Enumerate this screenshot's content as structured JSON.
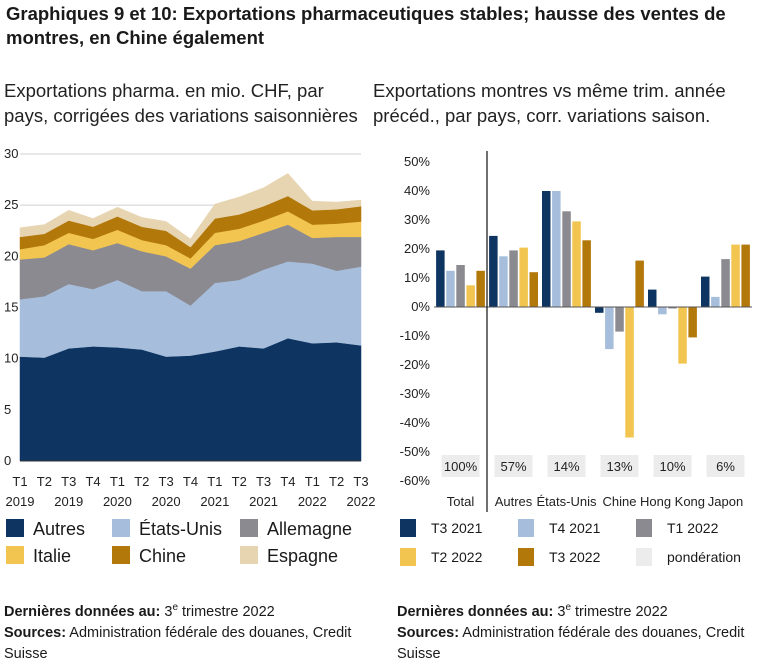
{
  "title": "Graphiques 9 et 10: Exportations pharmaceutiques stables; hausse des ventes de montres, en Chine également",
  "footer": {
    "last_data_label": "Dernières données au:",
    "last_data_num": "3",
    "last_data_sup": "e",
    "last_data_rest": " trimestre 2022",
    "sources_label": "Sources:",
    "sources_text": " Administration fédérale des douanes, Credit Suisse"
  },
  "chart_data": [
    {
      "type": "area",
      "stacked": true,
      "subtitle": "Exportations pharma. en mio. CHF, par pays, corrigées des variations saisonnières",
      "x": [
        "T1 2019",
        "T2 2019",
        "T3 2019",
        "T4 2019",
        "T1 2020",
        "T2 2020",
        "T3 2020",
        "T4 2020",
        "T1 2021",
        "T2 2021",
        "T3 2021",
        "T4 2021",
        "T1 2022",
        "T2 2022",
        "T3 2022"
      ],
      "x_tick_labels": [
        {
          "q": "T1",
          "y": "2019"
        },
        {
          "q": "T2",
          "y": ""
        },
        {
          "q": "T3",
          "y": "2019"
        },
        {
          "q": "T4",
          "y": ""
        },
        {
          "q": "T1",
          "y": "2020"
        },
        {
          "q": "T2",
          "y": ""
        },
        {
          "q": "T3",
          "y": "2020"
        },
        {
          "q": "T4",
          "y": ""
        },
        {
          "q": "T1",
          "y": "2021"
        },
        {
          "q": "T2",
          "y": ""
        },
        {
          "q": "T3",
          "y": "2021"
        },
        {
          "q": "T4",
          "y": ""
        },
        {
          "q": "T1",
          "y": "2022"
        },
        {
          "q": "T2",
          "y": ""
        },
        {
          "q": "T3",
          "y": "2022"
        }
      ],
      "ylim": [
        0,
        30
      ],
      "yticks": [
        0,
        5,
        10,
        15,
        20,
        25,
        30
      ],
      "grid": true,
      "legend_position": "bottom",
      "series": [
        {
          "name": "Autres",
          "color": "#0e3462",
          "values": [
            10.2,
            10.1,
            11.0,
            11.2,
            11.1,
            10.9,
            10.2,
            10.3,
            10.7,
            11.2,
            11.0,
            12.0,
            11.5,
            11.6,
            11.3
          ]
        },
        {
          "name": "États-Unis",
          "color": "#a6bedb",
          "values": [
            5.6,
            6.0,
            6.3,
            5.6,
            6.6,
            5.7,
            6.4,
            4.9,
            6.7,
            6.5,
            7.7,
            7.5,
            7.8,
            7.0,
            7.7
          ]
        },
        {
          "name": "Allemagne",
          "color": "#8c8a91",
          "values": [
            3.9,
            3.8,
            3.9,
            3.8,
            3.6,
            3.9,
            3.4,
            3.6,
            3.7,
            3.8,
            3.6,
            3.6,
            2.5,
            3.3,
            2.9
          ]
        },
        {
          "name": "Italie",
          "color": "#f2c550",
          "values": [
            1.0,
            1.2,
            1.1,
            1.1,
            1.3,
            1.1,
            1.1,
            1.0,
            1.2,
            1.2,
            1.2,
            1.3,
            1.3,
            1.3,
            1.5
          ]
        },
        {
          "name": "Chine",
          "color": "#b2780a",
          "values": [
            1.2,
            1.1,
            1.2,
            1.2,
            1.3,
            1.3,
            1.4,
            1.1,
            1.4,
            1.4,
            1.4,
            1.5,
            1.4,
            1.4,
            1.5
          ]
        },
        {
          "name": "Espagne",
          "color": "#e7d5b2",
          "values": [
            0.9,
            0.9,
            1.0,
            0.8,
            0.9,
            0.9,
            0.9,
            0.8,
            1.4,
            1.7,
            1.8,
            2.2,
            0.9,
            0.7,
            0.6
          ]
        }
      ]
    },
    {
      "type": "bar",
      "subtitle": "Exportations montres vs même trim. année précéd., par pays, corr. variations saison.",
      "categories": [
        "Total",
        "Autres",
        "États-Unis",
        "Chine",
        "Hong Kong",
        "Japon"
      ],
      "weights": [
        "100%",
        "57%",
        "14%",
        "13%",
        "10%",
        "6%"
      ],
      "weight_legend_label": "pondération",
      "weight_color": "#ececec",
      "ylim": [
        -60,
        50
      ],
      "yticks": [
        "-60%",
        "-50%",
        "-40%",
        "-30%",
        "-20%",
        "-10%",
        "0%",
        "10%",
        "20%",
        "30%",
        "40%",
        "50%"
      ],
      "ytick_values": [
        -60,
        -50,
        -40,
        -30,
        -20,
        -10,
        0,
        10,
        20,
        30,
        40,
        50
      ],
      "grid": false,
      "legend_position": "bottom",
      "series": [
        {
          "name": "T3 2021",
          "color": "#0e3462",
          "values": [
            19.5,
            24.5,
            40,
            -2,
            6,
            10.5
          ]
        },
        {
          "name": "T4 2021",
          "color": "#a6bedb",
          "values": [
            12.5,
            17.5,
            40,
            -14.5,
            -2.5,
            3.5
          ]
        },
        {
          "name": "T1 2022",
          "color": "#8c8a91",
          "values": [
            14.5,
            19.5,
            33,
            -8.5,
            -0.5,
            16.5
          ]
        },
        {
          "name": "T2 2022",
          "color": "#f2c550",
          "values": [
            7.5,
            20.5,
            29.5,
            -45,
            -19.5,
            21.5
          ]
        },
        {
          "name": "T3 2022",
          "color": "#b2780a",
          "values": [
            12.5,
            12,
            23,
            16,
            -10.5,
            21.5
          ]
        }
      ]
    }
  ]
}
